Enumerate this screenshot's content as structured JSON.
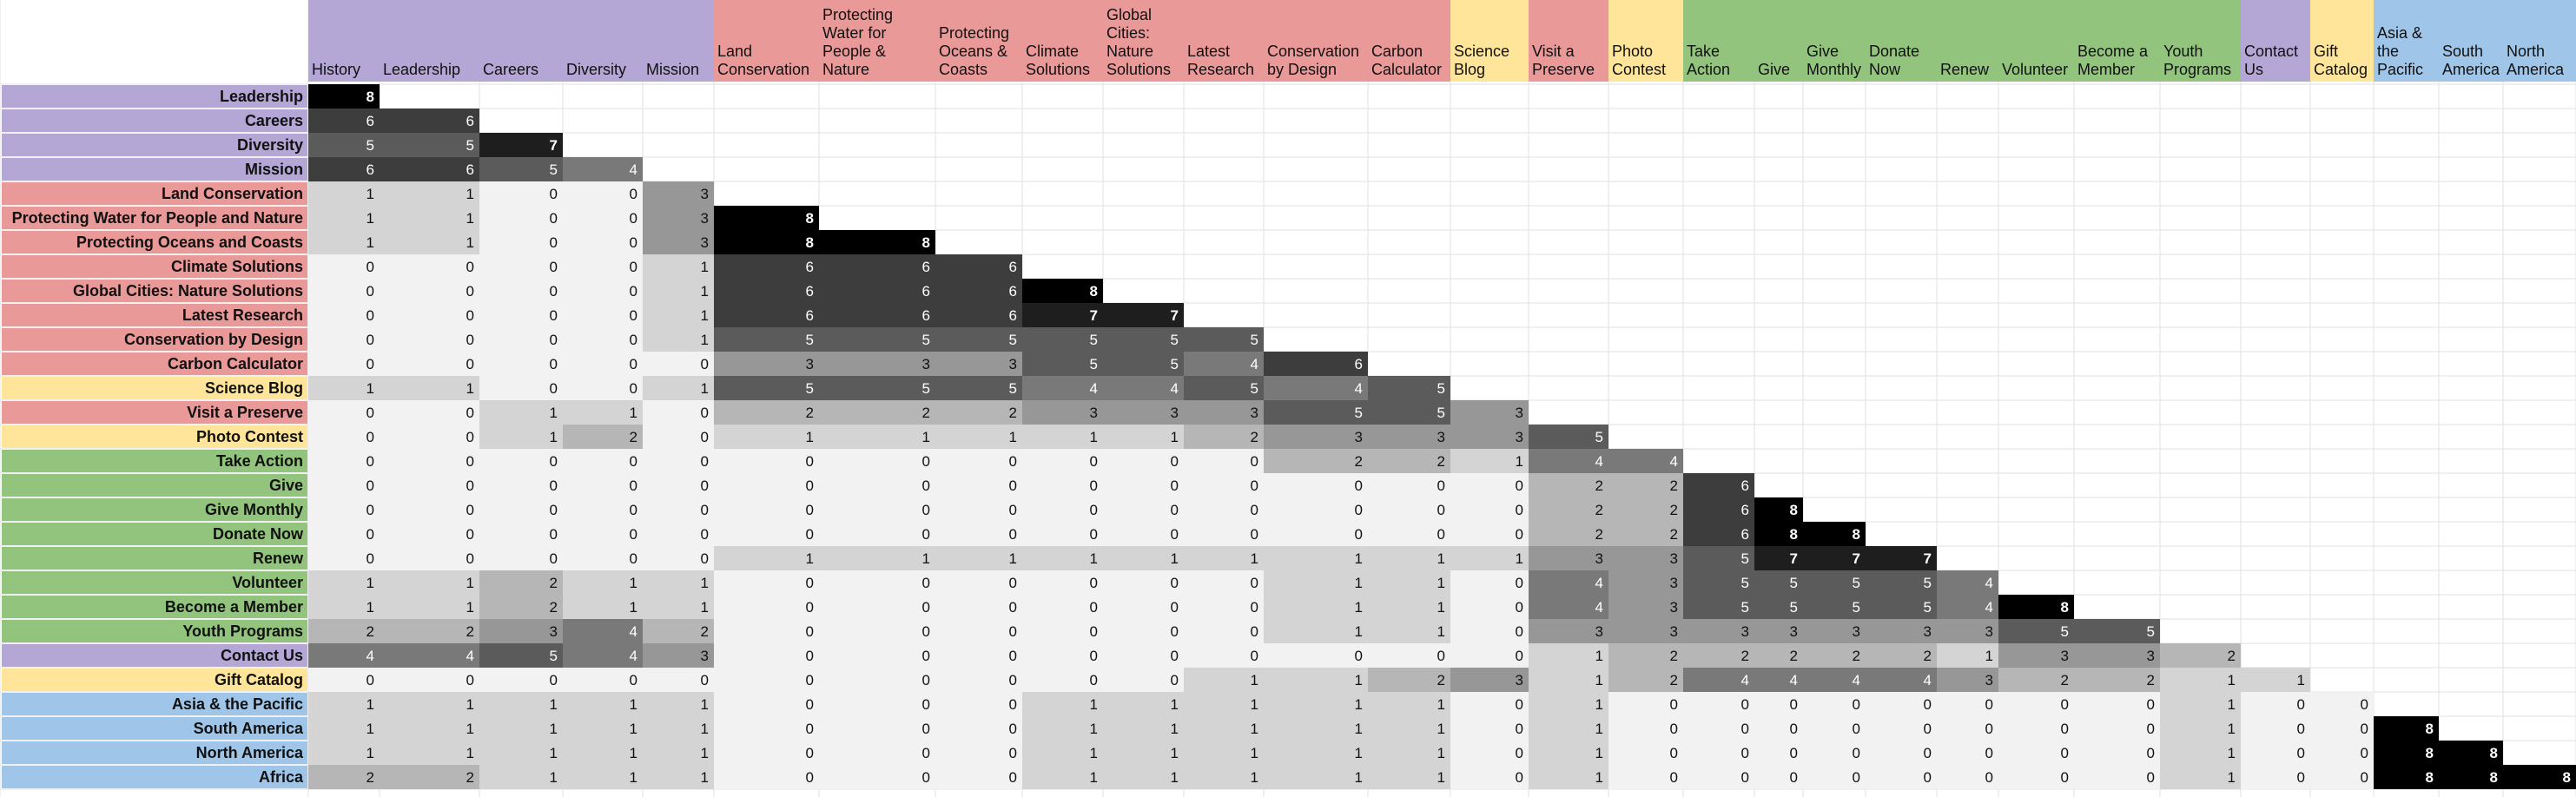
{
  "chart_data": {
    "type": "heatmap",
    "title": "",
    "columns": [
      "History",
      "Leadership",
      "Careers",
      "Diversity",
      "Mission",
      "Land Conservation",
      "Protecting Water for People & Nature",
      "Protecting Oceans & Coasts",
      "Climate Solutions",
      "Global Cities: Nature Solutions",
      "Latest Research",
      "Conservation by Design",
      "Carbon Calculator",
      "Science Blog",
      "Visit a Preserve",
      "Photo Contest",
      "Take Action",
      "Give",
      "Give Monthly",
      "Donate Now",
      "Renew",
      "Volunteer",
      "Become a Member",
      "Youth Programs",
      "Contact Us",
      "Gift Catalog",
      "Asia & the Pacific",
      "South America",
      "North America"
    ],
    "rows": [
      "Leadership",
      "Careers",
      "Diversity",
      "Mission",
      "Land Conservation",
      "Protecting Water for People and Nature",
      "Protecting Oceans and Coasts",
      "Climate Solutions",
      "Global Cities: Nature Solutions",
      "Latest Research",
      "Conservation by Design",
      "Carbon Calculator",
      "Science Blog",
      "Visit a Preserve",
      "Photo Contest",
      "Take Action",
      "Give",
      "Give Monthly",
      "Donate Now",
      "Renew",
      "Volunteer",
      "Become a Member",
      "Youth Programs",
      "Contact Us",
      "Gift Catalog",
      "Asia & the Pacific",
      "South America",
      "North America",
      "Africa"
    ],
    "values": [
      [
        8
      ],
      [
        6,
        6
      ],
      [
        5,
        5,
        7
      ],
      [
        6,
        6,
        5,
        4
      ],
      [
        1,
        1,
        0,
        0,
        3
      ],
      [
        1,
        1,
        0,
        0,
        3,
        8
      ],
      [
        1,
        1,
        0,
        0,
        3,
        8,
        8
      ],
      [
        0,
        0,
        0,
        0,
        1,
        6,
        6,
        6
      ],
      [
        0,
        0,
        0,
        0,
        1,
        6,
        6,
        6,
        8
      ],
      [
        0,
        0,
        0,
        0,
        1,
        6,
        6,
        6,
        7,
        7
      ],
      [
        0,
        0,
        0,
        0,
        1,
        5,
        5,
        5,
        5,
        5,
        5
      ],
      [
        0,
        0,
        0,
        0,
        0,
        3,
        3,
        3,
        5,
        5,
        4,
        6
      ],
      [
        1,
        1,
        0,
        0,
        1,
        5,
        5,
        5,
        4,
        4,
        5,
        4,
        5
      ],
      [
        0,
        0,
        1,
        1,
        0,
        2,
        2,
        2,
        3,
        3,
        3,
        5,
        5,
        3
      ],
      [
        0,
        0,
        1,
        2,
        0,
        1,
        1,
        1,
        1,
        1,
        2,
        3,
        3,
        3,
        5
      ],
      [
        0,
        0,
        0,
        0,
        0,
        0,
        0,
        0,
        0,
        0,
        0,
        2,
        2,
        1,
        4,
        4
      ],
      [
        0,
        0,
        0,
        0,
        0,
        0,
        0,
        0,
        0,
        0,
        0,
        0,
        0,
        0,
        2,
        2,
        6
      ],
      [
        0,
        0,
        0,
        0,
        0,
        0,
        0,
        0,
        0,
        0,
        0,
        0,
        0,
        0,
        2,
        2,
        6,
        8
      ],
      [
        0,
        0,
        0,
        0,
        0,
        0,
        0,
        0,
        0,
        0,
        0,
        0,
        0,
        0,
        2,
        2,
        6,
        8,
        8
      ],
      [
        0,
        0,
        0,
        0,
        0,
        1,
        1,
        1,
        1,
        1,
        1,
        1,
        1,
        1,
        3,
        3,
        5,
        7,
        7,
        7
      ],
      [
        1,
        1,
        2,
        1,
        1,
        0,
        0,
        0,
        0,
        0,
        0,
        1,
        1,
        0,
        4,
        3,
        5,
        5,
        5,
        5,
        4
      ],
      [
        1,
        1,
        2,
        1,
        1,
        0,
        0,
        0,
        0,
        0,
        0,
        1,
        1,
        0,
        4,
        3,
        5,
        5,
        5,
        5,
        4,
        8
      ],
      [
        2,
        2,
        3,
        4,
        2,
        0,
        0,
        0,
        0,
        0,
        0,
        1,
        1,
        0,
        3,
        3,
        3,
        3,
        3,
        3,
        3,
        5,
        5
      ],
      [
        4,
        4,
        5,
        4,
        3,
        0,
        0,
        0,
        0,
        0,
        0,
        0,
        0,
        0,
        1,
        2,
        2,
        2,
        2,
        2,
        1,
        3,
        3,
        2
      ],
      [
        0,
        0,
        0,
        0,
        0,
        0,
        0,
        0,
        0,
        0,
        1,
        1,
        2,
        3,
        1,
        2,
        4,
        4,
        4,
        4,
        3,
        2,
        2,
        1,
        1
      ],
      [
        1,
        1,
        1,
        1,
        1,
        0,
        0,
        0,
        1,
        1,
        1,
        1,
        1,
        0,
        1,
        0,
        0,
        0,
        0,
        0,
        0,
        0,
        0,
        1,
        0,
        0
      ],
      [
        1,
        1,
        1,
        1,
        1,
        0,
        0,
        0,
        1,
        1,
        1,
        1,
        1,
        0,
        1,
        0,
        0,
        0,
        0,
        0,
        0,
        0,
        0,
        1,
        0,
        0,
        8
      ],
      [
        1,
        1,
        1,
        1,
        1,
        0,
        0,
        0,
        1,
        1,
        1,
        1,
        1,
        0,
        1,
        0,
        0,
        0,
        0,
        0,
        0,
        0,
        0,
        1,
        0,
        0,
        8,
        8
      ],
      [
        2,
        2,
        1,
        1,
        1,
        0,
        0,
        0,
        1,
        1,
        1,
        1,
        1,
        0,
        1,
        0,
        0,
        0,
        0,
        0,
        0,
        0,
        0,
        1,
        0,
        0,
        8,
        8,
        8
      ]
    ],
    "col_group": [
      "about",
      "about",
      "about",
      "about",
      "about",
      "science",
      "science",
      "science",
      "science",
      "science",
      "science",
      "science",
      "science",
      "yellow",
      "science",
      "yellow",
      "action",
      "action",
      "action",
      "action",
      "action",
      "action",
      "action",
      "action",
      "about",
      "yellow",
      "region",
      "region",
      "region"
    ],
    "row_group": [
      "about",
      "about",
      "about",
      "about",
      "science",
      "science",
      "science",
      "science",
      "science",
      "science",
      "science",
      "science",
      "yellow",
      "science",
      "yellow",
      "action",
      "action",
      "action",
      "action",
      "action",
      "action",
      "action",
      "action",
      "about",
      "yellow",
      "region",
      "region",
      "region",
      "region"
    ],
    "group_colors": {
      "about": "#b4a7d6",
      "science": "#ea9999",
      "yellow": "#ffe599",
      "action": "#93c47d",
      "region": "#9fc5e8"
    },
    "value_max": 8,
    "grid": true
  }
}
